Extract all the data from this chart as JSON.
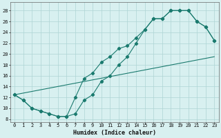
{
  "xlabel": "Humidex (Indice chaleur)",
  "line_color": "#1a7a6e",
  "bg_color": "#d8f0f0",
  "grid_color": "#aed4d4",
  "xlim": [
    -0.5,
    23.5
  ],
  "ylim": [
    7.5,
    29.5
  ],
  "xticks": [
    0,
    1,
    2,
    3,
    4,
    5,
    6,
    7,
    8,
    9,
    10,
    11,
    12,
    13,
    14,
    15,
    16,
    17,
    18,
    19,
    20,
    21,
    22,
    23
  ],
  "yticks": [
    8,
    10,
    12,
    14,
    16,
    18,
    20,
    22,
    24,
    26,
    28
  ],
  "line1_x": [
    0,
    1,
    2,
    3,
    4,
    5,
    6,
    7,
    8,
    9,
    10,
    11,
    12,
    13,
    14,
    15,
    16,
    17,
    18,
    19,
    20,
    21,
    22,
    23
  ],
  "line1_y": [
    12.5,
    11.5,
    10.0,
    9.5,
    9.0,
    8.5,
    8.5,
    9.0,
    11.5,
    12.5,
    15.0,
    16.0,
    18.0,
    19.5,
    22.0,
    24.5,
    26.5,
    26.5,
    28.0,
    28.0,
    28.0,
    26.0,
    25.0,
    22.5
  ],
  "line2_x": [
    0,
    1,
    2,
    3,
    4,
    5,
    6,
    7,
    8,
    9,
    10,
    11,
    12,
    13,
    14,
    15,
    16,
    17,
    18,
    19,
    20,
    21,
    22,
    23
  ],
  "line2_y": [
    12.5,
    11.5,
    10.0,
    9.5,
    9.0,
    8.5,
    8.5,
    12.0,
    15.5,
    16.5,
    18.5,
    19.5,
    21.0,
    21.5,
    23.0,
    24.5,
    26.5,
    26.5,
    28.0,
    28.0,
    28.0,
    26.0,
    25.0,
    22.5
  ],
  "line3_x": [
    0,
    23
  ],
  "line3_y": [
    12.5,
    19.5
  ],
  "marker": "D",
  "markersize": 2.2,
  "xlabel_fontsize": 6.0,
  "tick_fontsize": 5.0
}
